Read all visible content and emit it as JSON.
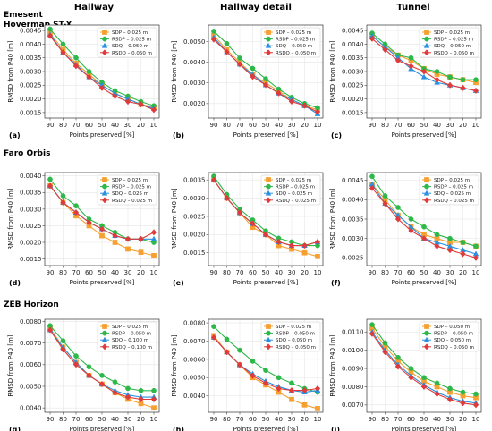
{
  "column_titles": [
    "Hallway",
    "Hallway detail",
    "Tunnel"
  ],
  "row_titles": [
    [
      "Emesent",
      "Hovermap ST-X"
    ],
    [
      "Faro Orbis"
    ],
    [
      "ZEB Horizon"
    ]
  ],
  "colors": {
    "SDP": "#f5a030",
    "RSDP": "#2db84a",
    "SDQ": "#2a90e0",
    "RSDQ": "#e03a3a",
    "grid": "#e6e6e6"
  },
  "markers": {
    "SDP": "square",
    "RSDP": "circle",
    "SDQ": "triangle",
    "RSDQ": "diamond"
  },
  "chart_data": [
    {
      "type": "line",
      "panel": "(a)",
      "xlabel": "Points preserved [%]",
      "ylabel": "RMSD from P40 [m]",
      "x": [
        90,
        80,
        70,
        60,
        50,
        40,
        30,
        20,
        10
      ],
      "xticks": [
        "90",
        "80",
        "70",
        "60",
        "50",
        "40",
        "30",
        "20",
        "10"
      ],
      "ylim": [
        0.0013,
        0.0047
      ],
      "yticks": [
        "0.0015",
        "0.0020",
        "0.0025",
        "0.0030",
        "0.0035",
        "0.0040",
        "0.0045"
      ],
      "yticks_values": [
        0.0015,
        0.002,
        0.0025,
        0.003,
        0.0035,
        0.004,
        0.0045
      ],
      "series": [
        {
          "name": "SDP – 0.025 m",
          "key": "SDP",
          "values": [
            0.0044,
            0.0038,
            0.0033,
            0.0029,
            0.0025,
            0.0022,
            0.002,
            0.0018,
            0.0017
          ]
        },
        {
          "name": "RSDP – 0.025 m",
          "key": "RSDP",
          "values": [
            0.00455,
            0.004,
            0.0035,
            0.003,
            0.0026,
            0.0023,
            0.0021,
            0.0019,
            0.00175
          ]
        },
        {
          "name": "SDQ – 0.050 m",
          "key": "SDQ",
          "values": [
            0.00435,
            0.0037,
            0.00325,
            0.0028,
            0.0025,
            0.0022,
            0.002,
            0.0018,
            0.00165
          ]
        },
        {
          "name": "RSDQ – 0.050 m",
          "key": "RSDQ",
          "values": [
            0.0043,
            0.0037,
            0.0032,
            0.0028,
            0.0024,
            0.0021,
            0.0019,
            0.0018,
            0.0016
          ]
        }
      ]
    },
    {
      "type": "line",
      "panel": "(b)",
      "xlabel": "Points preserved [%]",
      "ylabel": "RMSD from P40 [m]",
      "x": [
        90,
        80,
        70,
        60,
        50,
        40,
        30,
        20,
        10
      ],
      "xticks": [
        "90",
        "80",
        "70",
        "60",
        "50",
        "40",
        "30",
        "20",
        "10"
      ],
      "ylim": [
        0.0013,
        0.0058
      ],
      "yticks": [
        "0.0020",
        "0.0030",
        "0.0040",
        "0.0050"
      ],
      "yticks_values": [
        0.002,
        0.003,
        0.004,
        0.005
      ],
      "series": [
        {
          "name": "SDP – 0.025 m",
          "key": "SDP",
          "values": [
            0.0053,
            0.0046,
            0.004,
            0.0034,
            0.003,
            0.0026,
            0.0022,
            0.0019,
            0.0017
          ]
        },
        {
          "name": "RSDP – 0.025 m",
          "key": "RSDP",
          "values": [
            0.0055,
            0.0049,
            0.0042,
            0.0037,
            0.0032,
            0.0027,
            0.0023,
            0.002,
            0.0018
          ]
        },
        {
          "name": "SDQ – 0.050 m",
          "key": "SDQ",
          "values": [
            0.0052,
            0.0045,
            0.0039,
            0.0034,
            0.0029,
            0.0025,
            0.0022,
            0.0019,
            0.0015
          ]
        },
        {
          "name": "RSDQ – 0.050 m",
          "key": "RSDQ",
          "values": [
            0.0051,
            0.0045,
            0.0039,
            0.0033,
            0.0029,
            0.0025,
            0.0021,
            0.0019,
            0.0016
          ]
        }
      ]
    },
    {
      "type": "line",
      "panel": "(c)",
      "xlabel": "Points preserved [%]",
      "ylabel": "RMSD from P40 [m]",
      "x": [
        90,
        80,
        70,
        60,
        50,
        40,
        30,
        20,
        10
      ],
      "xticks": [
        "90",
        "80",
        "70",
        "60",
        "50",
        "40",
        "30",
        "20",
        "10"
      ],
      "ylim": [
        0.0013,
        0.0047
      ],
      "yticks": [
        "0.0015",
        "0.0020",
        "0.0025",
        "0.0030",
        "0.0035",
        "0.0040",
        "0.0045"
      ],
      "yticks_values": [
        0.0015,
        0.002,
        0.0025,
        0.003,
        0.0035,
        0.004,
        0.0045
      ],
      "series": [
        {
          "name": "SDP – 0.025 m",
          "key": "SDP",
          "values": [
            0.0043,
            0.0039,
            0.0036,
            0.0034,
            0.0031,
            0.0029,
            0.0028,
            0.0027,
            0.0026
          ]
        },
        {
          "name": "RSDP – 0.025 m",
          "key": "RSDP",
          "values": [
            0.0044,
            0.004,
            0.0036,
            0.0035,
            0.0031,
            0.003,
            0.0028,
            0.0027,
            0.0027
          ]
        },
        {
          "name": "SDQ – 0.050 m",
          "key": "SDQ",
          "values": [
            0.0043,
            0.0039,
            0.0035,
            0.0031,
            0.0028,
            0.0026,
            0.0025,
            0.0024,
            0.0023
          ]
        },
        {
          "name": "RSDQ – 0.050 m",
          "key": "RSDQ",
          "values": [
            0.0042,
            0.0038,
            0.0034,
            0.0032,
            0.003,
            0.0027,
            0.0025,
            0.0024,
            0.0023
          ]
        }
      ]
    },
    {
      "type": "line",
      "panel": "(d)",
      "xlabel": "Points preserved [%]",
      "ylabel": "RMSD from P40 [m]",
      "x": [
        90,
        80,
        70,
        60,
        50,
        40,
        30,
        20,
        10
      ],
      "xticks": [
        "90",
        "80",
        "70",
        "60",
        "50",
        "40",
        "30",
        "20",
        "10"
      ],
      "ylim": [
        0.0013,
        0.0041
      ],
      "yticks": [
        "0.0015",
        "0.0020",
        "0.0025",
        "0.0030",
        "0.0035",
        "0.0040"
      ],
      "yticks_values": [
        0.0015,
        0.002,
        0.0025,
        0.003,
        0.0035,
        0.004
      ],
      "series": [
        {
          "name": "SDP – 0.025 m",
          "key": "SDP",
          "values": [
            0.0037,
            0.0032,
            0.0028,
            0.0025,
            0.0022,
            0.002,
            0.0018,
            0.0017,
            0.0016
          ]
        },
        {
          "name": "RSDP – 0.025 m",
          "key": "RSDP",
          "values": [
            0.0039,
            0.0034,
            0.0031,
            0.0027,
            0.0025,
            0.0023,
            0.0021,
            0.0021,
            0.002
          ]
        },
        {
          "name": "SDQ – 0.025 m",
          "key": "SDQ",
          "values": [
            0.0037,
            0.0032,
            0.0029,
            0.0026,
            0.0024,
            0.0022,
            0.0021,
            0.0021,
            0.0021
          ]
        },
        {
          "name": "RSDQ – 0.025 m",
          "key": "RSDQ",
          "values": [
            0.0037,
            0.0032,
            0.0029,
            0.0026,
            0.0024,
            0.0022,
            0.0021,
            0.0021,
            0.0023
          ]
        }
      ]
    },
    {
      "type": "line",
      "panel": "(e)",
      "xlabel": "Points preserved [%]",
      "ylabel": "RMSD from P40 [m]",
      "x": [
        90,
        80,
        70,
        60,
        50,
        40,
        30,
        20,
        10
      ],
      "xticks": [
        "90",
        "80",
        "70",
        "60",
        "50",
        "40",
        "30",
        "20",
        "10"
      ],
      "ylim": [
        0.00115,
        0.0037
      ],
      "yticks": [
        "0.0015",
        "0.0020",
        "0.0025",
        "0.0030",
        "0.0035"
      ],
      "yticks_values": [
        0.0015,
        0.002,
        0.0025,
        0.003,
        0.0035
      ],
      "series": [
        {
          "name": "SDP – 0.025 m",
          "key": "SDP",
          "values": [
            0.0035,
            0.003,
            0.0026,
            0.0022,
            0.002,
            0.0017,
            0.0016,
            0.0015,
            0.0014
          ]
        },
        {
          "name": "RSDP – 0.025 m",
          "key": "RSDP",
          "values": [
            0.0036,
            0.0031,
            0.0027,
            0.0024,
            0.0021,
            0.0019,
            0.0018,
            0.0017,
            0.0017
          ]
        },
        {
          "name": "SDQ – 0.025 m",
          "key": "SDQ",
          "values": [
            0.0035,
            0.003,
            0.0026,
            0.0023,
            0.002,
            0.0018,
            0.0017,
            0.0017,
            0.0018
          ]
        },
        {
          "name": "RSDQ – 0.025 m",
          "key": "RSDQ",
          "values": [
            0.0035,
            0.003,
            0.0026,
            0.0023,
            0.002,
            0.0018,
            0.0017,
            0.0017,
            0.0018
          ]
        }
      ]
    },
    {
      "type": "line",
      "panel": "(f)",
      "xlabel": "Points preserved [%]",
      "ylabel": "RMSD from P40 [m]",
      "x": [
        90,
        80,
        70,
        60,
        50,
        40,
        30,
        20,
        10
      ],
      "xticks": [
        "90",
        "80",
        "70",
        "60",
        "50",
        "40",
        "30",
        "20",
        "10"
      ],
      "ylim": [
        0.0023,
        0.0047
      ],
      "yticks": [
        "0.0025",
        "0.0030",
        "0.0035",
        "0.0040",
        "0.0045"
      ],
      "yticks_values": [
        0.0025,
        0.003,
        0.0035,
        0.004,
        0.0045
      ],
      "series": [
        {
          "name": "SDP – 0.025 m",
          "key": "SDP",
          "values": [
            0.0044,
            0.004,
            0.0036,
            0.0033,
            0.0031,
            0.003,
            0.0029,
            0.0029,
            0.0028
          ]
        },
        {
          "name": "RSDP – 0.025 m",
          "key": "RSDP",
          "values": [
            0.0046,
            0.0041,
            0.0038,
            0.0035,
            0.0033,
            0.0031,
            0.003,
            0.0029,
            0.0028
          ]
        },
        {
          "name": "SDQ – 0.025 m",
          "key": "SDQ",
          "values": [
            0.0044,
            0.0039,
            0.0036,
            0.0033,
            0.003,
            0.0029,
            0.0028,
            0.0027,
            0.0026
          ]
        },
        {
          "name": "RSDQ – 0.025 m",
          "key": "RSDQ",
          "values": [
            0.0043,
            0.0039,
            0.0035,
            0.0032,
            0.003,
            0.0028,
            0.0027,
            0.0026,
            0.0025
          ]
        }
      ]
    },
    {
      "type": "line",
      "panel": "(g)",
      "xlabel": "Points preserved [%]",
      "ylabel": "RMSD from P40 [m]",
      "x": [
        90,
        80,
        70,
        60,
        50,
        40,
        30,
        20,
        10
      ],
      "xticks": [
        "90",
        "80",
        "70",
        "60",
        "50",
        "40",
        "30",
        "20",
        "10"
      ],
      "ylim": [
        0.0038,
        0.0081
      ],
      "yticks": [
        "0.0040",
        "0.0050",
        "0.0060",
        "0.0070",
        "0.0080"
      ],
      "yticks_values": [
        0.004,
        0.005,
        0.006,
        0.007,
        0.008
      ],
      "series": [
        {
          "name": "SDP – 0.025 m",
          "key": "SDP",
          "values": [
            0.0077,
            0.0068,
            0.0061,
            0.0055,
            0.0051,
            0.0047,
            0.0044,
            0.0042,
            0.004
          ]
        },
        {
          "name": "RSDP – 0.050 m",
          "key": "RSDP",
          "values": [
            0.0078,
            0.0071,
            0.0064,
            0.0059,
            0.0055,
            0.0052,
            0.0049,
            0.0048,
            0.0048
          ]
        },
        {
          "name": "SDQ – 0.100 m",
          "key": "SDQ",
          "values": [
            0.0076,
            0.0068,
            0.0061,
            0.0055,
            0.0051,
            0.0048,
            0.0046,
            0.0045,
            0.0045
          ]
        },
        {
          "name": "RSDQ – 0.100 m",
          "key": "RSDQ",
          "values": [
            0.0076,
            0.0067,
            0.006,
            0.0055,
            0.0051,
            0.0047,
            0.0045,
            0.0044,
            0.0044
          ]
        }
      ]
    },
    {
      "type": "line",
      "panel": "(h)",
      "xlabel": "Points preserved [%]",
      "ylabel": "RMSD from P40 [m]",
      "x": [
        90,
        80,
        70,
        60,
        50,
        40,
        30,
        20,
        10
      ],
      "xticks": [
        "90",
        "80",
        "70",
        "60",
        "50",
        "40",
        "30",
        "20",
        "10"
      ],
      "ylim": [
        0.0031,
        0.0082
      ],
      "yticks": [
        "0.0040",
        "0.0050",
        "0.0060",
        "0.0070",
        "0.0080"
      ],
      "yticks_values": [
        0.004,
        0.005,
        0.006,
        0.007,
        0.008
      ],
      "series": [
        {
          "name": "SDP – 0.025 m",
          "key": "SDP",
          "values": [
            0.0073,
            0.0064,
            0.0057,
            0.005,
            0.0046,
            0.0042,
            0.0038,
            0.0035,
            0.0033
          ]
        },
        {
          "name": "RSDP – 0.050 m",
          "key": "RSDP",
          "values": [
            0.0078,
            0.0071,
            0.0065,
            0.0059,
            0.0054,
            0.005,
            0.0047,
            0.0044,
            0.0042
          ]
        },
        {
          "name": "SDQ – 0.050 m",
          "key": "SDQ",
          "values": [
            0.0072,
            0.0064,
            0.0057,
            0.0052,
            0.0048,
            0.0045,
            0.0043,
            0.0042,
            0.0043
          ]
        },
        {
          "name": "RSDQ – 0.050 m",
          "key": "RSDQ",
          "values": [
            0.0072,
            0.0064,
            0.0057,
            0.0051,
            0.0047,
            0.0044,
            0.0043,
            0.0043,
            0.0044
          ]
        }
      ]
    },
    {
      "type": "line",
      "panel": "(i)",
      "xlabel": "Points preserved [%]",
      "ylabel": "RMSD from P40 [m]",
      "x": [
        90,
        80,
        70,
        60,
        50,
        40,
        30,
        20,
        10
      ],
      "xticks": [
        "90",
        "80",
        "70",
        "60",
        "50",
        "40",
        "30",
        "20",
        "10"
      ],
      "ylim": [
        0.0066,
        0.0117
      ],
      "yticks": [
        "0.0070",
        "0.0080",
        "0.0090",
        "0.0100",
        "0.0110"
      ],
      "yticks_values": [
        0.007,
        0.008,
        0.009,
        0.01,
        0.011
      ],
      "series": [
        {
          "name": "SDP – 0.050 m",
          "key": "SDP",
          "values": [
            0.0112,
            0.0102,
            0.0094,
            0.0088,
            0.0083,
            0.008,
            0.0077,
            0.0075,
            0.0074
          ]
        },
        {
          "name": "RSDP – 0.050 m",
          "key": "RSDP",
          "values": [
            0.0114,
            0.0104,
            0.0096,
            0.009,
            0.0085,
            0.0082,
            0.0079,
            0.0077,
            0.0076
          ]
        },
        {
          "name": "SDQ – 0.050 m",
          "key": "SDQ",
          "values": [
            0.011,
            0.01,
            0.0092,
            0.0086,
            0.0081,
            0.0077,
            0.0074,
            0.0072,
            0.0071
          ]
        },
        {
          "name": "RSDQ – 0.050 m",
          "key": "RSDQ",
          "values": [
            0.0109,
            0.0099,
            0.0091,
            0.0085,
            0.008,
            0.0076,
            0.0073,
            0.0071,
            0.007
          ]
        }
      ]
    }
  ]
}
